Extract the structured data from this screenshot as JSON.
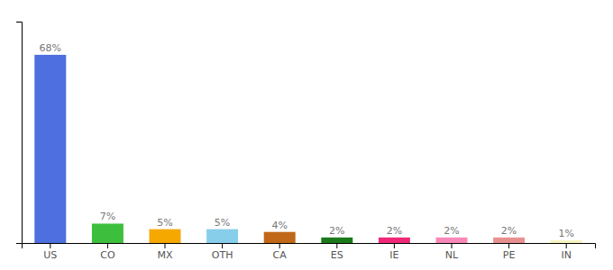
{
  "chart_data": {
    "type": "bar",
    "categories": [
      "US",
      "CO",
      "MX",
      "OTH",
      "CA",
      "ES",
      "IE",
      "NL",
      "PE",
      "IN"
    ],
    "values": [
      68,
      7,
      5,
      5,
      4,
      2,
      2,
      2,
      2,
      1
    ],
    "value_labels": [
      "68%",
      "7%",
      "5%",
      "5%",
      "4%",
      "2%",
      "2%",
      "2%",
      "2%",
      "1%"
    ],
    "colors": [
      "#4d6fe0",
      "#3dbf3d",
      "#f5a800",
      "#87ceeb",
      "#c06818",
      "#1a7a1a",
      "#f02878",
      "#f888b8",
      "#e89090",
      "#f5f5c0"
    ],
    "ylim": [
      0,
      80
    ],
    "data_labels": true,
    "tick_labels": "x",
    "grid": false
  }
}
